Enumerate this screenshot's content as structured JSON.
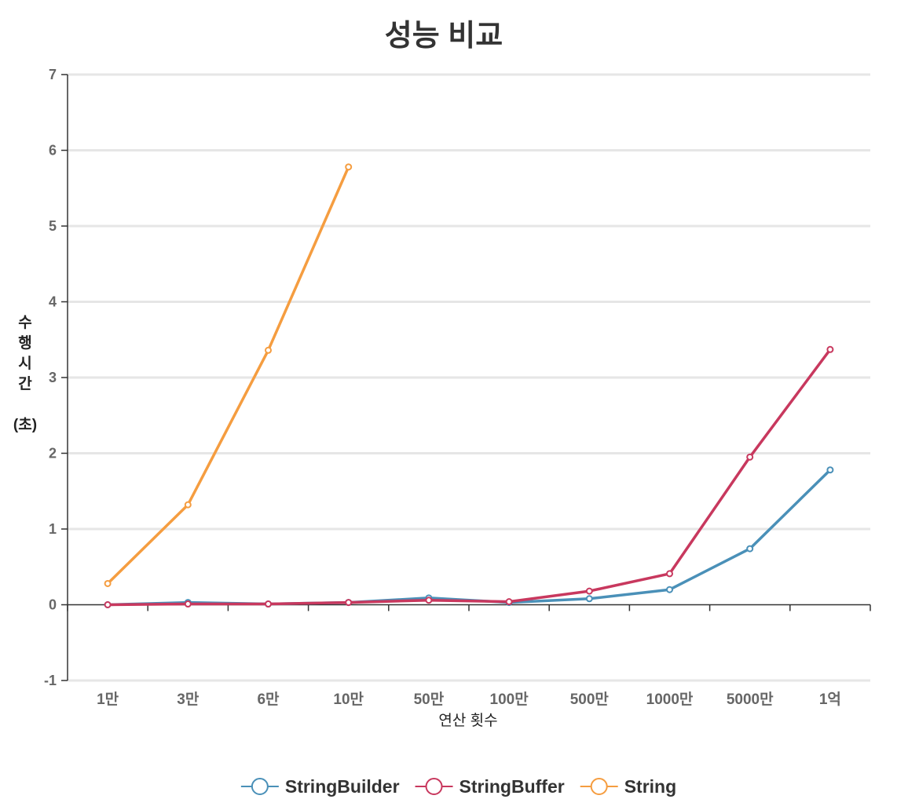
{
  "chart_data": {
    "type": "line",
    "title": "성능 비교",
    "xlabel": "연산 횟수",
    "ylabel": "수행시간 (초)",
    "ylabel_lines": [
      "수",
      "행",
      "시",
      "간",
      "",
      "(초)"
    ],
    "categories": [
      "1만",
      "3만",
      "6만",
      "10만",
      "50만",
      "100만",
      "500만",
      "1000만",
      "5000만",
      "1억"
    ],
    "ylim": [
      -1,
      7
    ],
    "yticks": [
      -1,
      0,
      1,
      2,
      3,
      4,
      5,
      6,
      7
    ],
    "grid": true,
    "legend_position": "bottom",
    "series": [
      {
        "name": "StringBuilder",
        "color": "#4a90b8",
        "values": [
          0.0,
          0.03,
          0.01,
          0.03,
          0.09,
          0.03,
          0.08,
          0.2,
          0.74,
          1.78
        ]
      },
      {
        "name": "StringBuffer",
        "color": "#c8385e",
        "values": [
          0.0,
          0.01,
          0.01,
          0.03,
          0.06,
          0.04,
          0.18,
          0.41,
          1.95,
          3.37
        ]
      },
      {
        "name": "String",
        "color": "#f59d40",
        "values": [
          0.28,
          1.32,
          3.36,
          5.78,
          null,
          null,
          null,
          null,
          null,
          null
        ]
      }
    ]
  }
}
